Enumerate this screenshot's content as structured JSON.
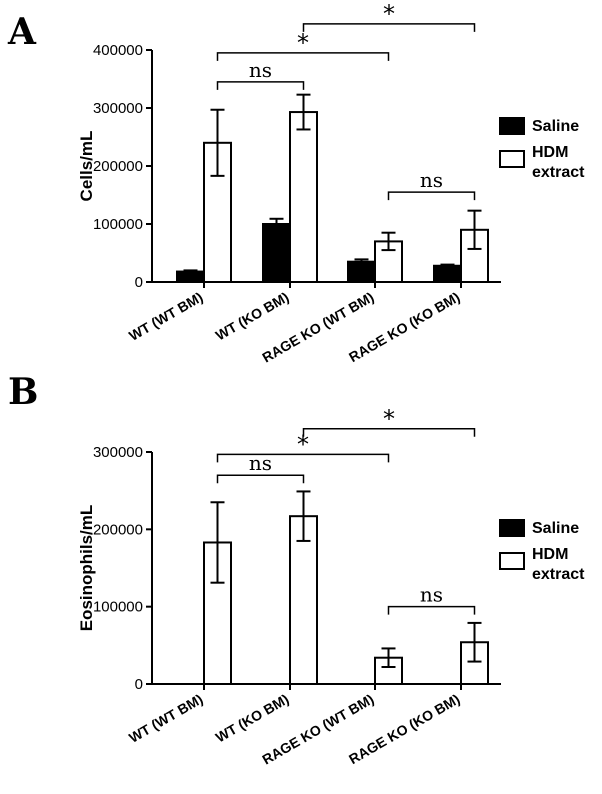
{
  "legend": {
    "saline": "Saline",
    "hdm_line1": "HDM",
    "hdm_line2": "extract"
  },
  "colors": {
    "saline": "#000000",
    "hdm": "#ffffff",
    "stroke": "#000000"
  },
  "chart_data": [
    {
      "type": "bar",
      "panel_label": "A",
      "ylabel": "Cells/mL",
      "ylim": [
        0,
        400000
      ],
      "yticks": [
        0,
        100000,
        200000,
        300000,
        400000
      ],
      "ytick_labels": [
        "0",
        "100000",
        "200000",
        "300000",
        "400000"
      ],
      "categories": [
        "WT (WT BM)",
        "WT (KO BM)",
        "RAGE KO (WT BM)",
        "RAGE KO (KO BM)"
      ],
      "series": [
        {
          "name": "Saline",
          "values": [
            18000,
            100000,
            35000,
            28000
          ],
          "errors": [
            2000,
            9000,
            4000,
            2000
          ]
        },
        {
          "name": "HDM extract",
          "values": [
            240000,
            293000,
            70000,
            90000
          ],
          "errors": [
            57000,
            30000,
            15000,
            33000
          ]
        }
      ],
      "annotations": [
        {
          "text": "ns",
          "from": 0,
          "to": 1,
          "y": 345000
        },
        {
          "text": "*",
          "from": 0,
          "to": 2,
          "y": 395000
        },
        {
          "text": "*",
          "from": 1,
          "to": 3,
          "y": 445000
        },
        {
          "text": "ns",
          "from": 2,
          "to": 3,
          "y": 155000
        }
      ]
    },
    {
      "type": "bar",
      "panel_label": "B",
      "ylabel": "Eosinophils/mL",
      "ylim": [
        0,
        300000
      ],
      "yticks": [
        0,
        100000,
        200000,
        300000
      ],
      "ytick_labels": [
        "0",
        "100000",
        "200000",
        "300000"
      ],
      "categories": [
        "WT (WT BM)",
        "WT (KO BM)",
        "RAGE KO (WT BM)",
        "RAGE KO (KO BM)"
      ],
      "series": [
        {
          "name": "Saline",
          "values": [
            0,
            0,
            0,
            0
          ],
          "errors": [
            0,
            0,
            0,
            0
          ]
        },
        {
          "name": "HDM extract",
          "values": [
            183000,
            217000,
            34000,
            54000
          ],
          "errors": [
            52000,
            32000,
            12000,
            25000
          ]
        }
      ],
      "annotations": [
        {
          "text": "ns",
          "from": 0,
          "to": 1,
          "y": 270000
        },
        {
          "text": "*",
          "from": 0,
          "to": 2,
          "y": 297000
        },
        {
          "text": "*",
          "from": 1,
          "to": 3,
          "y": 330000
        },
        {
          "text": "ns",
          "from": 2,
          "to": 3,
          "y": 100000
        }
      ]
    }
  ]
}
